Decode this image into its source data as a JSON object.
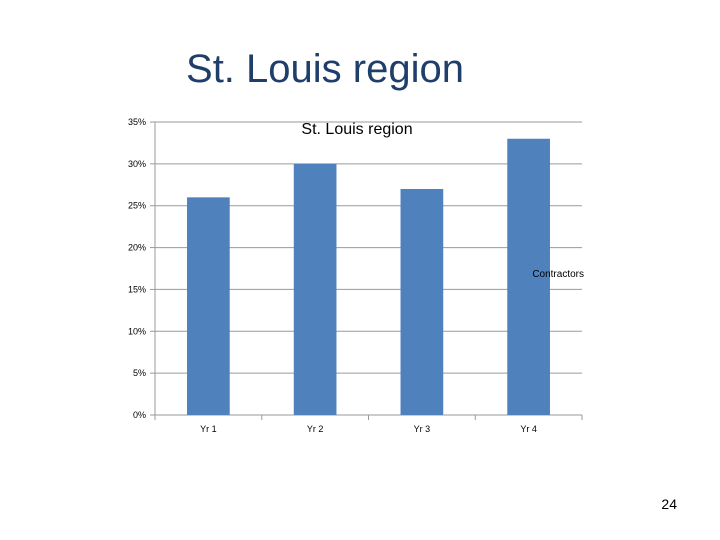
{
  "slide": {
    "title": "St. Louis region",
    "page_number": "24"
  },
  "chart_data": {
    "type": "bar",
    "title": "St. Louis region",
    "categories": [
      "Yr 1",
      "Yr 2",
      "Yr 3",
      "Yr 4"
    ],
    "series": [
      {
        "name": "Contractors",
        "values": [
          26,
          30,
          27,
          33
        ],
        "color": "#4f81bd"
      }
    ],
    "ylim": [
      0,
      35
    ],
    "yticks": [
      0,
      5,
      10,
      15,
      20,
      25,
      30,
      35
    ],
    "ytick_labels": [
      "0%",
      "5%",
      "10%",
      "15%",
      "20%",
      "25%",
      "30%",
      "35%"
    ],
    "xlabel": "",
    "ylabel": "",
    "grid": true,
    "legend_position": "right"
  }
}
